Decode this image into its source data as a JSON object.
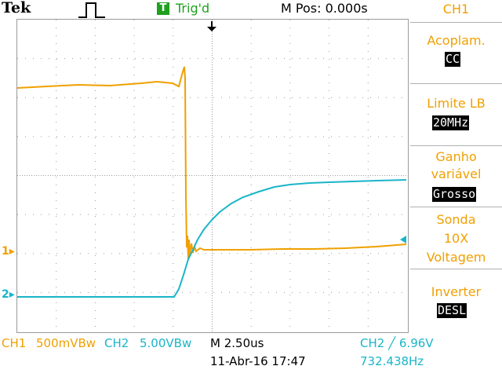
{
  "header": {
    "brand": "Tek",
    "trigger_badge": "T",
    "trigger_status": "Trig'd",
    "m_pos": "M Pos: 0.000s"
  },
  "side_menu": {
    "title": "CH1",
    "items": [
      {
        "label": "Acoplam.",
        "value": "CC"
      },
      {
        "label": "Limite LB",
        "value": "20MHz"
      },
      {
        "label_line1": "Ganho",
        "label_line2": "variável",
        "value": "Grosso"
      },
      {
        "label_line1": "Sonda",
        "label_line2": "10X",
        "label_line3": "Voltagem"
      },
      {
        "label": "Inverter",
        "value": "DESL"
      }
    ]
  },
  "channel_markers": {
    "ch1": "1",
    "ch2": "2"
  },
  "footer": {
    "ch1_label": "CH1",
    "ch1_scale": "500mVBw",
    "ch2_label": "CH2",
    "ch2_scale": "5.00VBw",
    "timebase": "M 2.50us",
    "date": "11-Abr-16 17:47",
    "trigger_source": "CH2",
    "trigger_level": "6.96V",
    "frequency": "732.438Hz"
  },
  "colors": {
    "ch1": "#f0a000",
    "ch2": "#1ab5c8",
    "trigger": "#1fa01f",
    "grid": "#9a9a9a"
  }
}
